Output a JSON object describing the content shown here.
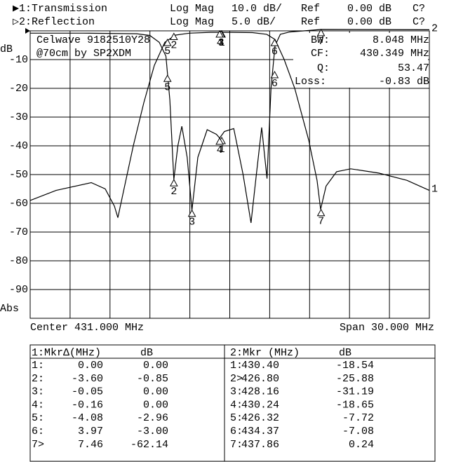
{
  "header": {
    "lines": [
      {
        "channel": "▶1:Transmission",
        "format": "Log Mag",
        "scale": "10.0 dB/",
        "ref_label": "Ref",
        "ref": "0.00 dB",
        "status": "C?"
      },
      {
        "channel": "▷2:Reflection",
        "format": "Log Mag",
        "scale": "5.0 dB/",
        "ref_label": "Ref",
        "ref": "0.00 dB",
        "status": "C?"
      }
    ]
  },
  "chart_data": {
    "type": "line",
    "y_label": "dB",
    "y_label_bottom": "Abs",
    "x_left_label": "Center 431.000 MHz",
    "x_right_label": "Span 30.000 MHz",
    "xlim": [
      416,
      446
    ],
    "xticks": [
      416,
      419,
      422,
      425,
      428,
      431,
      434,
      437,
      440,
      443,
      446
    ],
    "ylim": [
      -100,
      0
    ],
    "yticks": [
      -10,
      -20,
      -30,
      -40,
      -50,
      -60,
      -70,
      -80,
      -90
    ],
    "y2lim": [
      -50,
      0
    ],
    "grid": true,
    "marker_labels": [
      "1",
      "2",
      "3",
      "4",
      "5",
      "6",
      "7"
    ],
    "series": [
      {
        "name": "1",
        "color": "#000000",
        "x": [
          416.0,
          417.95,
          420.59,
          421.64,
          422.33,
          422.59,
          422.96,
          423.75,
          424.54,
          425.33,
          426.12,
          426.91,
          427.97,
          429.55,
          431.13,
          432.71,
          433.77,
          434.4,
          435.09,
          435.88,
          436.93,
          437.56,
          437.83,
          438.24,
          439.03,
          440.09,
          442.2,
          444.31,
          446.0
        ],
        "values": [
          -59,
          -55.5,
          -52.8,
          -55,
          -61,
          -65,
          -57,
          -40,
          -25,
          -12,
          -4,
          -1.5,
          -0.8,
          -0.5,
          -0.5,
          -0.6,
          -1.2,
          -3,
          -10,
          -20,
          -38,
          -52,
          -62.1,
          -54,
          -49,
          -48,
          -49.5,
          -52,
          -55.5
        ]
      },
      {
        "name": "2",
        "color": "#000000",
        "axis": "y2",
        "x": [
          416.0,
          420.0,
          424.0,
          425.0,
          425.7,
          426.2,
          426.5,
          426.8,
          427.1,
          427.4,
          427.8,
          428.16,
          428.6,
          429.3,
          430.0,
          430.24,
          430.6,
          431.3,
          432.0,
          432.6,
          433.0,
          433.4,
          433.8,
          434.1,
          434.4,
          434.8,
          435.5,
          437.86,
          446.0
        ],
        "values": [
          -0.4,
          -0.4,
          -0.5,
          -0.8,
          -2,
          -4.4,
          -12,
          -25.88,
          -20,
          -16.6,
          -22,
          -31.19,
          -22,
          -17.2,
          -18,
          -18.65,
          -17.5,
          -17,
          -25,
          -33.4,
          -25,
          -16.8,
          -25.7,
          -10,
          -2.6,
          -0.6,
          -0.2,
          0.24,
          0.2
        ]
      }
    ]
  },
  "annotation": {
    "device": "Celwave 9182510Y28",
    "author": "@70cm by SP2XDM"
  },
  "stats": [
    {
      "label": "BW:",
      "value": "8.048 MHz"
    },
    {
      "label": "CF:",
      "value": "430.349 MHz"
    },
    {
      "label": "Q:",
      "value": "53.47"
    },
    {
      "label": "Loss:",
      "value": "-0.83 dB"
    }
  ],
  "tables": [
    {
      "header": [
        "1:MkrΔ(MHz)",
        "dB"
      ],
      "rows": [
        [
          "1:",
          "0.00",
          "0.00"
        ],
        [
          "2:",
          "-3.60",
          "-0.85"
        ],
        [
          "3:",
          "-0.05",
          "0.00"
        ],
        [
          "4:",
          "-0.16",
          "0.00"
        ],
        [
          "5:",
          "-4.08",
          "-2.96"
        ],
        [
          "6:",
          "3.97",
          "-3.00"
        ],
        [
          "7>",
          "7.46",
          "-62.14"
        ]
      ]
    },
    {
      "header": [
        "2:Mkr (MHz)",
        "dB"
      ],
      "rows": [
        [
          "1:",
          "430.40",
          "-18.54"
        ],
        [
          "2>",
          "426.80",
          "-25.88"
        ],
        [
          "3:",
          "428.16",
          "-31.19"
        ],
        [
          "4:",
          "430.24",
          "-18.65"
        ],
        [
          "5:",
          "426.32",
          "-7.72"
        ],
        [
          "6:",
          "434.37",
          "-7.08"
        ],
        [
          "7:",
          "437.86",
          "0.24"
        ]
      ]
    }
  ]
}
